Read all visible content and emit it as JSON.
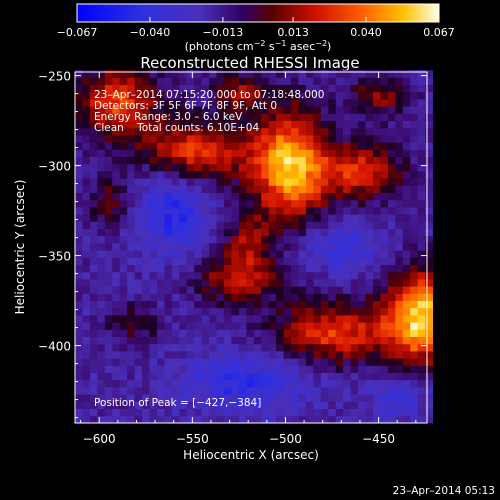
{
  "chart_data": {
    "type": "heatmap",
    "title": "Reconstructed RHESSI Image",
    "xlabel": "Heliocentric X (arcsec)",
    "ylabel": "Heliocentric Y (arcsec)",
    "xlim": [
      -613,
      -424
    ],
    "ylim": [
      -443,
      -248
    ],
    "x_ticks": [
      -600,
      -550,
      -500,
      -450
    ],
    "x_tick_labels": [
      "−600",
      "−550",
      "−500",
      "−450"
    ],
    "y_ticks": [
      -250,
      -300,
      -350,
      -400
    ],
    "y_tick_labels": [
      "−250",
      "−300",
      "−350",
      "−400"
    ],
    "colorbar": {
      "range": [
        -0.067,
        0.067
      ],
      "ticks": [
        -0.067,
        -0.04,
        -0.013,
        0.013,
        0.04,
        0.067
      ],
      "tick_labels": [
        "−0.067",
        "−0.040",
        "−0.013",
        "0.013",
        "0.040",
        "0.067"
      ],
      "unit_prefix": "(photons cm",
      "unit_exp1": "−2",
      "unit_mid": " s",
      "unit_exp2": "−1",
      "unit_suffix": " asec",
      "unit_exp3": "−2",
      "unit_close": ")"
    },
    "annotations": [
      "23–Apr–2014 07:15:20.000 to 07:18:48.000",
      "Detectors: 3F 5F 6F 7F 8F 9F, Att 0",
      "Energy Range: 3.0 – 6.0 keV",
      "Clean    Total counts: 6.10E+04"
    ],
    "peak_label": "Position of Peak = [−427,−384]",
    "peak": [
      -427,
      -384
    ],
    "sources": [
      {
        "x": -498,
        "y": -300,
        "sx": 14,
        "sy": 22,
        "amp": 0.072
      },
      {
        "x": -548,
        "y": -292,
        "sx": 20,
        "sy": 12,
        "amp": 0.05
      },
      {
        "x": -460,
        "y": -303,
        "sx": 16,
        "sy": 11,
        "amp": 0.046
      },
      {
        "x": -427,
        "y": -384,
        "sx": 14,
        "sy": 18,
        "amp": 0.075
      },
      {
        "x": -475,
        "y": -393,
        "sx": 22,
        "sy": 12,
        "amp": 0.048
      },
      {
        "x": -525,
        "y": -362,
        "sx": 16,
        "sy": 10,
        "amp": 0.04
      },
      {
        "x": -590,
        "y": -265,
        "sx": 16,
        "sy": 14,
        "amp": 0.05
      },
      {
        "x": -520,
        "y": -340,
        "sx": 8,
        "sy": 10,
        "amp": 0.03
      },
      {
        "x": -582,
        "y": -388,
        "sx": 10,
        "sy": 8,
        "amp": 0.022
      },
      {
        "x": -525,
        "y": -258,
        "sx": 10,
        "sy": 7,
        "amp": 0.032
      },
      {
        "x": -450,
        "y": -262,
        "sx": 12,
        "sy": 8,
        "amp": 0.03
      },
      {
        "x": -595,
        "y": -320,
        "sx": 8,
        "sy": 10,
        "amp": 0.024
      },
      {
        "x": -560,
        "y": -325,
        "sx": 14,
        "sy": 18,
        "amp": -0.03
      },
      {
        "x": -470,
        "y": -345,
        "sx": 16,
        "sy": 10,
        "amp": -0.025
      },
      {
        "x": -520,
        "y": -420,
        "sx": 25,
        "sy": 12,
        "amp": -0.028
      },
      {
        "x": -440,
        "y": -428,
        "sx": 12,
        "sy": 10,
        "amp": -0.02
      }
    ],
    "grid": false
  },
  "footer_timestamp": "23–Apr–2014 05:13"
}
